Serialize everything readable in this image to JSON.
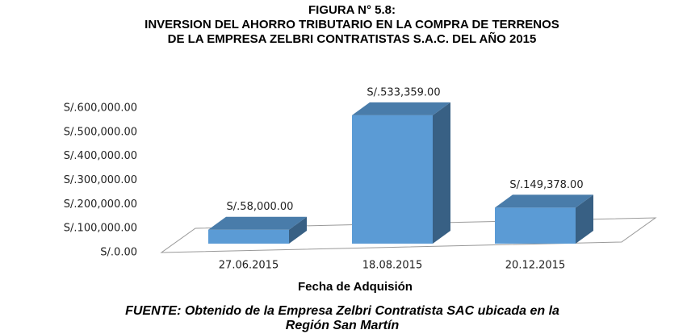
{
  "chart_data": {
    "type": "bar3d",
    "title": [
      "FIGURA N° 5.8:",
      "INVERSION DEL AHORRO TRIBUTARIO  EN LA COMPRA DE TERRENOS",
      "DE LA EMPRESA ZELBRI CONTRATISTAS S.A.C. DEL AÑO 2015"
    ],
    "categories": [
      "27.06.2015",
      "18.08.2015",
      "20.12.2015"
    ],
    "values": [
      58000,
      533359,
      149378
    ],
    "value_labels": [
      "S/.58,000.00",
      "S/.533,359.00",
      "S/.149,378.00"
    ],
    "color": "#5b9bd5",
    "ylim": [
      0,
      600000
    ],
    "yticks": [
      {
        "value": 0,
        "label": "S/.0.00"
      },
      {
        "value": 100000,
        "label": "S/.100,000.00"
      },
      {
        "value": 200000,
        "label": "S/.200,000.00"
      },
      {
        "value": 300000,
        "label": "S/.300,000.00"
      },
      {
        "value": 400000,
        "label": "S/.400,000.00"
      },
      {
        "value": 500000,
        "label": "S/.500,000.00"
      },
      {
        "value": 600000,
        "label": "S/.600,000.00"
      }
    ],
    "xlabel": "Fecha de Adquisión",
    "source": [
      "FUENTE: Obtenido de la Empresa Zelbri Contratista SAC ubicada en la",
      "Región San Martín"
    ],
    "grid": false
  }
}
